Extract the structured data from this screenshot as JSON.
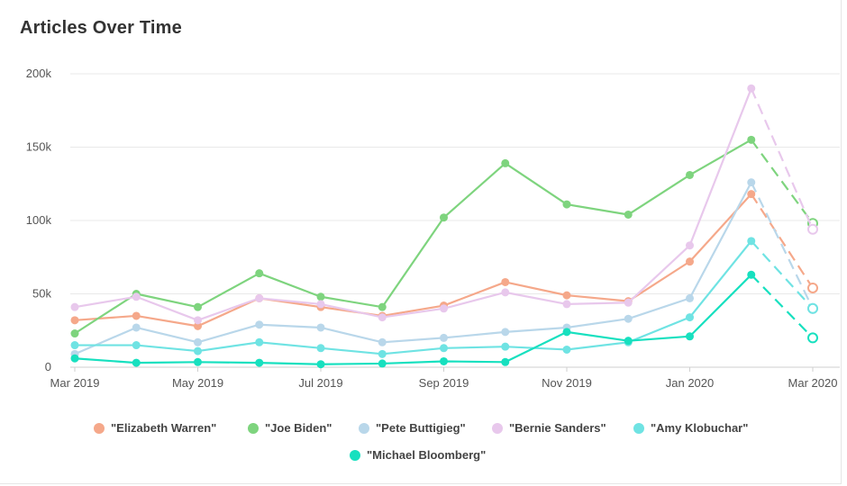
{
  "chart_data": {
    "type": "line",
    "title": "Articles Over Time",
    "x": [
      "Mar 2019",
      "Apr 2019",
      "May 2019",
      "Jun 2019",
      "Jul 2019",
      "Aug 2019",
      "Sep 2019",
      "Oct 2019",
      "Nov 2019",
      "Dec 2019",
      "Jan 2020",
      "Feb 2020",
      "Mar 2020"
    ],
    "x_tick_labels": [
      "Mar 2019",
      "May 2019",
      "Jul 2019",
      "Sep 2019",
      "Nov 2019",
      "Jan 2020",
      "Mar 2020"
    ],
    "y_tick_labels": [
      "0",
      "50k",
      "100k",
      "150k",
      "200k"
    ],
    "ylim": [
      0,
      200000
    ],
    "grid": true,
    "legend_position": "bottom",
    "projection_note": "last segment dashed",
    "series": [
      {
        "name": "\"Elizabeth Warren\"",
        "color": "#f5a88a",
        "values": [
          32000,
          35000,
          28000,
          47000,
          41000,
          35000,
          42000,
          58000,
          49000,
          45000,
          72000,
          118000,
          54000
        ]
      },
      {
        "name": "\"Joe Biden\"",
        "color": "#7ed47e",
        "values": [
          23000,
          50000,
          41000,
          64000,
          48000,
          41000,
          102000,
          139000,
          111000,
          104000,
          131000,
          155000,
          98000
        ]
      },
      {
        "name": "\"Pete Buttigieg\"",
        "color": "#b9d7ea",
        "values": [
          9000,
          27000,
          17000,
          29000,
          27000,
          17000,
          20000,
          24000,
          27000,
          33000,
          47000,
          126000,
          40000
        ]
      },
      {
        "name": "\"Bernie Sanders\"",
        "color": "#e8c8ec",
        "values": [
          41000,
          48000,
          32000,
          47000,
          43000,
          34000,
          40000,
          51000,
          43000,
          44000,
          83000,
          190000,
          94000
        ]
      },
      {
        "name": "\"Amy Klobuchar\"",
        "color": "#6fe3e3",
        "values": [
          15000,
          15000,
          11000,
          17000,
          13000,
          9000,
          13000,
          14000,
          12000,
          17000,
          34000,
          86000,
          40000
        ]
      },
      {
        "name": "\"Michael Bloomberg\"",
        "color": "#17e0bf",
        "values": [
          6000,
          3000,
          3500,
          3000,
          2000,
          2500,
          4000,
          3500,
          24000,
          18000,
          21000,
          63000,
          20000
        ]
      }
    ]
  }
}
